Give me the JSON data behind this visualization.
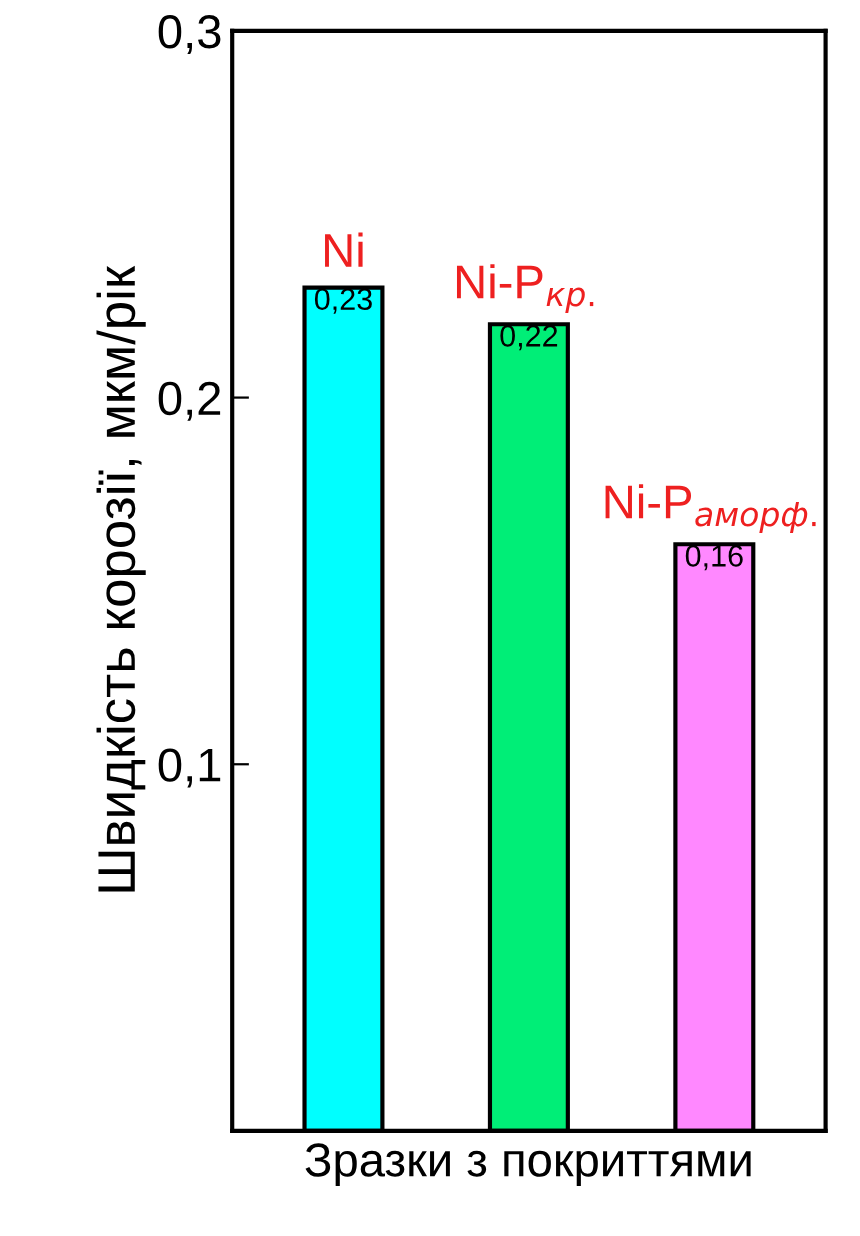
{
  "chart_data": {
    "type": "bar",
    "xlabel": "Зразки з покриттями",
    "ylabel": "Швидкість корозії, мкм/рік",
    "categories": [
      "Ni",
      "Ni-P$_{кр.}$",
      "Ni-P$_{аморф.}$"
    ],
    "values": [
      0.23,
      0.22,
      0.16
    ],
    "colors": [
      "#00ffff",
      "#00ee77",
      "#ff88ff"
    ],
    "value_labels": [
      "0,23",
      "0,22",
      "0,16"
    ],
    "ylim": [
      0,
      0.3
    ],
    "yticks": [
      {
        "value": 0.1,
        "label": "0,1"
      },
      {
        "value": 0.2,
        "label": "0,2"
      },
      {
        "value": 0.3,
        "label": "0,3"
      }
    ],
    "grid": false,
    "legend": false
  }
}
